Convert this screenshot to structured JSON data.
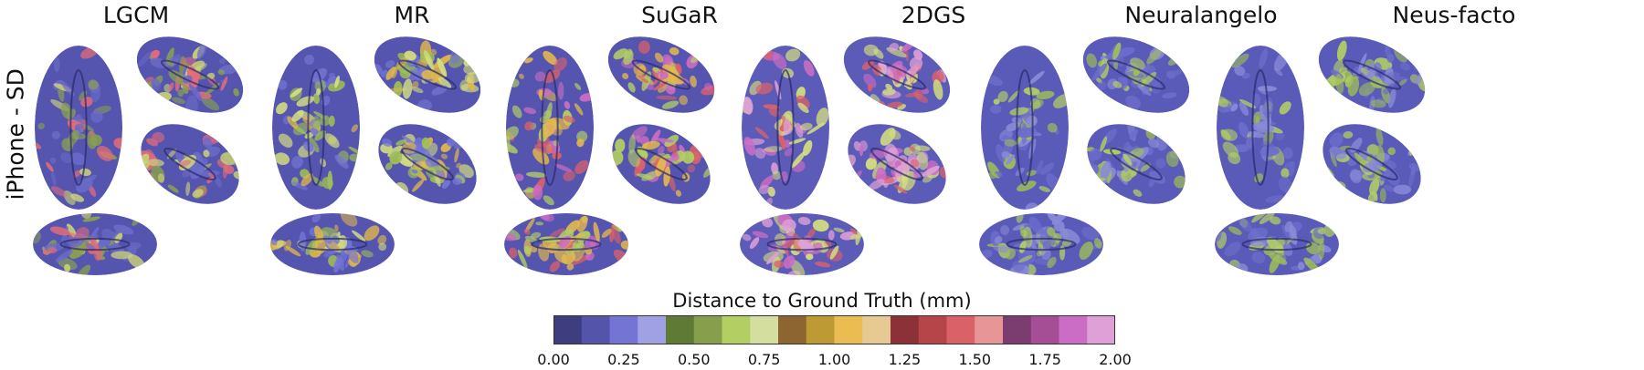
{
  "row_label": "iPhone - SD",
  "methods": [
    "LGCM",
    "MR",
    "SuGaR",
    "2DGS",
    "Neuralangelo",
    "Neus-facto"
  ],
  "colorbar": {
    "title": "Distance to Ground Truth (mm)",
    "tick_labels": [
      "0.00",
      "0.25",
      "0.50",
      "0.75",
      "1.00",
      "1.25",
      "1.50",
      "1.75",
      "2.00"
    ],
    "colors": [
      "#3d3d7f",
      "#5454ab",
      "#7474d4",
      "#a0a0e4",
      "#5e7a35",
      "#879f4d",
      "#b3cf63",
      "#d4de9e",
      "#8c6530",
      "#bd9a34",
      "#ebbc52",
      "#e6c993",
      "#8b3137",
      "#b6454a",
      "#db6169",
      "#e89598",
      "#7b3c6f",
      "#a54d95",
      "#cb6dc4",
      "#dea0d6"
    ]
  }
}
